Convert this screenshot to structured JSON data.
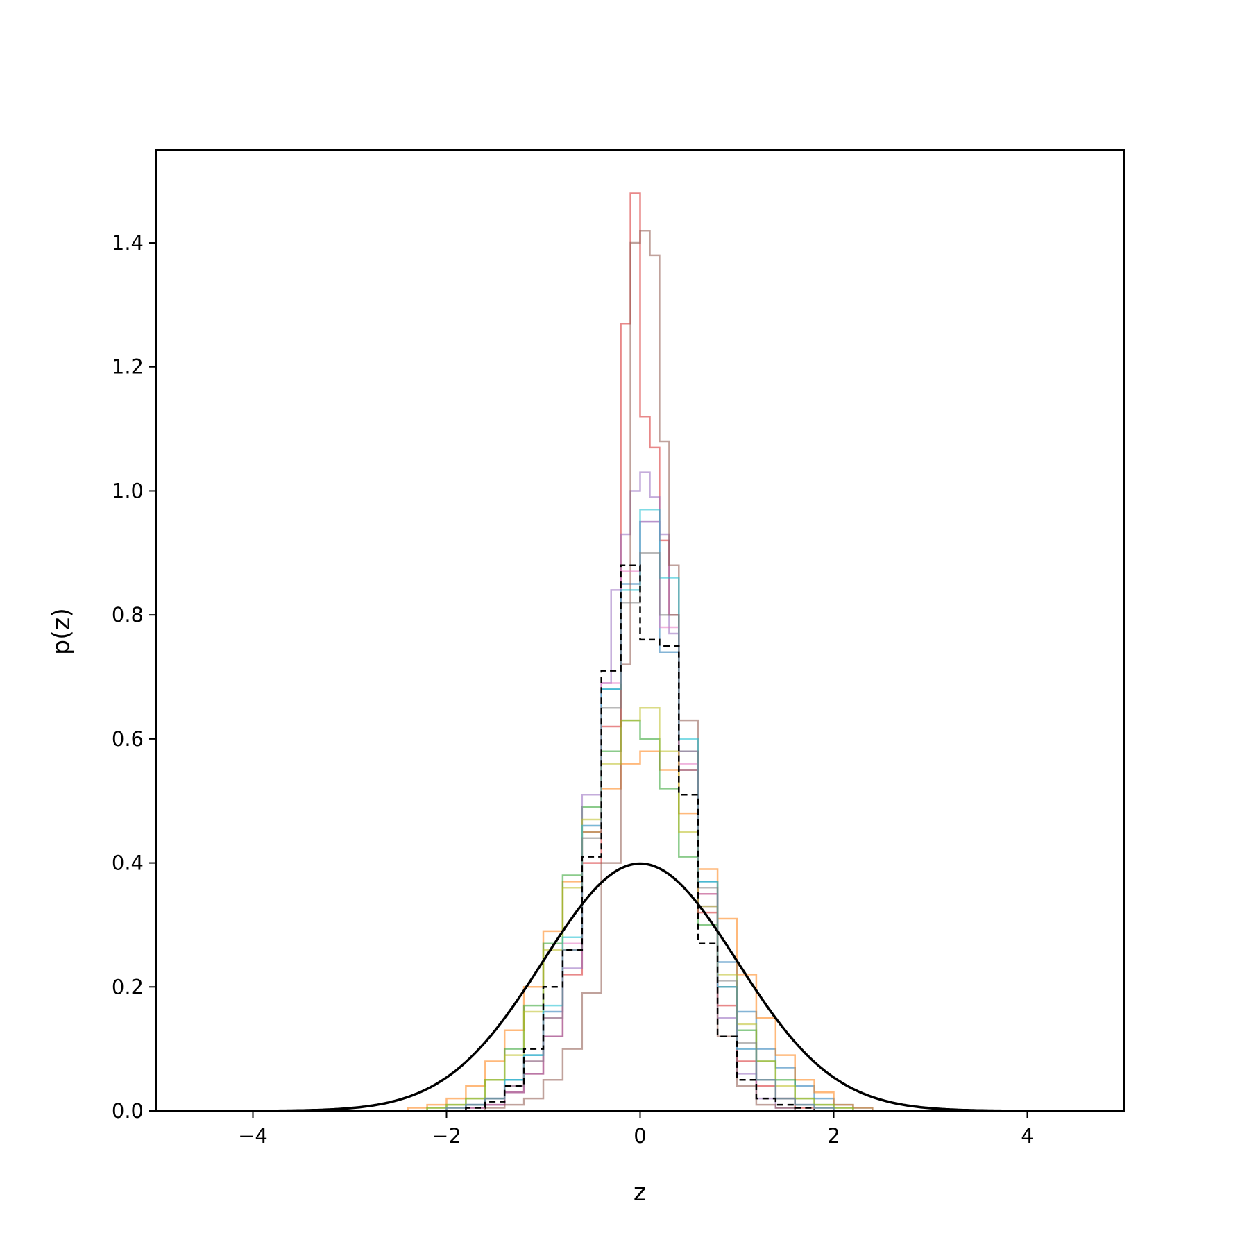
{
  "chart_data": {
    "type": "line",
    "xlabel": "z",
    "ylabel": "p(z)",
    "xlim": [
      -5,
      5
    ],
    "ylim": [
      0,
      1.55
    ],
    "x_ticks": [
      -4,
      -2,
      0,
      2,
      4
    ],
    "x_tick_labels": [
      "−4",
      "−2",
      "0",
      "2",
      "4"
    ],
    "y_ticks": [
      0.0,
      0.2,
      0.4,
      0.6,
      0.8,
      1.0,
      1.2,
      1.4
    ],
    "y_tick_labels": [
      "0.0",
      "0.2",
      "0.4",
      "0.6",
      "0.8",
      "1.0",
      "1.2",
      "1.4"
    ],
    "grid": false,
    "legend": "none",
    "histograms": [
      {
        "color": "#1f77b4",
        "edges": [
          -2.0,
          -1.8,
          -1.6,
          -1.4,
          -1.2,
          -1.0,
          -0.8,
          -0.6,
          -0.4,
          -0.2,
          0.0,
          0.2,
          0.4,
          0.6,
          0.8,
          1.0,
          1.2,
          1.4,
          1.6,
          1.8,
          2.0,
          2.2,
          2.4
        ],
        "heights": [
          0.0,
          0.01,
          0.02,
          0.05,
          0.09,
          0.16,
          0.26,
          0.45,
          0.68,
          0.85,
          0.95,
          0.74,
          0.55,
          0.37,
          0.24,
          0.16,
          0.1,
          0.07,
          0.04,
          0.02,
          0.01,
          0.005
        ]
      },
      {
        "color": "#ff7f0e",
        "edges": [
          -2.4,
          -2.2,
          -2.0,
          -1.8,
          -1.6,
          -1.4,
          -1.2,
          -1.0,
          -0.8,
          -0.6,
          -0.4,
          -0.2,
          0.0,
          0.2,
          0.4,
          0.6,
          0.8,
          1.0,
          1.2,
          1.4,
          1.6,
          1.8,
          2.0,
          2.2,
          2.4
        ],
        "heights": [
          0.005,
          0.01,
          0.02,
          0.04,
          0.08,
          0.13,
          0.2,
          0.29,
          0.37,
          0.45,
          0.52,
          0.56,
          0.58,
          0.55,
          0.48,
          0.39,
          0.31,
          0.22,
          0.15,
          0.09,
          0.05,
          0.03,
          0.01,
          0.005
        ]
      },
      {
        "color": "#2ca02c",
        "edges": [
          -2.2,
          -2.0,
          -1.8,
          -1.6,
          -1.4,
          -1.2,
          -1.0,
          -0.8,
          -0.6,
          -0.4,
          -0.2,
          0.0,
          0.2,
          0.4,
          0.6,
          0.8,
          1.0,
          1.2,
          1.4,
          1.6,
          1.8,
          2.0,
          2.2
        ],
        "heights": [
          0.005,
          0.01,
          0.02,
          0.05,
          0.1,
          0.17,
          0.27,
          0.38,
          0.49,
          0.58,
          0.63,
          0.6,
          0.52,
          0.41,
          0.3,
          0.2,
          0.13,
          0.08,
          0.05,
          0.02,
          0.01,
          0.005
        ]
      },
      {
        "color": "#d62728",
        "edges": [
          -1.8,
          -1.6,
          -1.4,
          -1.2,
          -1.0,
          -0.8,
          -0.6,
          -0.4,
          -0.2,
          -0.1,
          0.0,
          0.1,
          0.2,
          0.3,
          0.4,
          0.6,
          0.8,
          1.0,
          1.2,
          1.4,
          1.6,
          1.8
        ],
        "heights": [
          0.005,
          0.01,
          0.03,
          0.06,
          0.12,
          0.22,
          0.4,
          0.62,
          1.27,
          1.48,
          1.12,
          1.07,
          0.92,
          0.8,
          0.55,
          0.32,
          0.17,
          0.08,
          0.04,
          0.02,
          0.005
        ]
      },
      {
        "color": "#9467bd",
        "edges": [
          -1.8,
          -1.6,
          -1.4,
          -1.2,
          -1.0,
          -0.8,
          -0.6,
          -0.4,
          -0.3,
          -0.2,
          -0.1,
          0.0,
          0.1,
          0.2,
          0.3,
          0.4,
          0.6,
          0.8,
          1.0,
          1.2,
          1.4,
          1.6
        ],
        "heights": [
          0.005,
          0.01,
          0.03,
          0.06,
          0.12,
          0.23,
          0.51,
          0.69,
          0.84,
          0.93,
          1.0,
          1.03,
          0.99,
          0.93,
          0.77,
          0.58,
          0.33,
          0.15,
          0.06,
          0.02,
          0.005
        ]
      },
      {
        "color": "#8c564b",
        "edges": [
          -1.6,
          -1.4,
          -1.2,
          -1.0,
          -0.8,
          -0.6,
          -0.4,
          -0.2,
          -0.1,
          0.0,
          0.1,
          0.2,
          0.3,
          0.4,
          0.6,
          0.8,
          1.0,
          1.2,
          1.4,
          1.6
        ],
        "heights": [
          0.005,
          0.01,
          0.02,
          0.05,
          0.1,
          0.19,
          0.4,
          0.72,
          1.4,
          1.42,
          1.38,
          1.08,
          0.88,
          0.63,
          0.35,
          0.12,
          0.04,
          0.01,
          0.005
        ]
      },
      {
        "color": "#e377c2",
        "edges": [
          -2.0,
          -1.8,
          -1.6,
          -1.4,
          -1.2,
          -1.0,
          -0.8,
          -0.6,
          -0.4,
          -0.2,
          0.0,
          0.2,
          0.4,
          0.6,
          0.8,
          1.0,
          1.2,
          1.4,
          1.6,
          1.8,
          2.0
        ],
        "heights": [
          0.005,
          0.01,
          0.02,
          0.04,
          0.08,
          0.15,
          0.27,
          0.46,
          0.69,
          0.87,
          0.95,
          0.78,
          0.56,
          0.35,
          0.2,
          0.1,
          0.05,
          0.02,
          0.01,
          0.005
        ]
      },
      {
        "color": "#bcbd22",
        "edges": [
          -2.2,
          -2.0,
          -1.8,
          -1.6,
          -1.4,
          -1.2,
          -1.0,
          -0.8,
          -0.6,
          -0.4,
          -0.2,
          0.0,
          0.2,
          0.4,
          0.6,
          0.8,
          1.0,
          1.2,
          1.4,
          1.6,
          1.8,
          2.0,
          2.2
        ],
        "heights": [
          0.005,
          0.01,
          0.02,
          0.05,
          0.09,
          0.16,
          0.26,
          0.36,
          0.47,
          0.56,
          0.63,
          0.65,
          0.58,
          0.45,
          0.33,
          0.22,
          0.14,
          0.08,
          0.04,
          0.02,
          0.01,
          0.005
        ]
      },
      {
        "color": "#17becf",
        "edges": [
          -2.0,
          -1.8,
          -1.6,
          -1.4,
          -1.2,
          -1.0,
          -0.8,
          -0.6,
          -0.4,
          -0.2,
          0.0,
          0.2,
          0.4,
          0.6,
          0.8,
          1.0,
          1.2,
          1.4,
          1.6,
          1.8,
          2.0
        ],
        "heights": [
          0.005,
          0.01,
          0.02,
          0.05,
          0.09,
          0.17,
          0.28,
          0.46,
          0.68,
          0.84,
          0.97,
          0.86,
          0.6,
          0.37,
          0.2,
          0.1,
          0.05,
          0.02,
          0.01,
          0.005
        ]
      },
      {
        "color": "#7f7f7f",
        "edges": [
          -2.0,
          -1.8,
          -1.6,
          -1.4,
          -1.2,
          -1.0,
          -0.8,
          -0.6,
          -0.4,
          -0.2,
          0.0,
          0.2,
          0.4,
          0.6,
          0.8,
          1.0,
          1.2,
          1.4,
          1.6,
          1.8,
          2.0
        ],
        "heights": [
          0.005,
          0.01,
          0.02,
          0.04,
          0.08,
          0.15,
          0.26,
          0.44,
          0.65,
          0.82,
          0.9,
          0.8,
          0.58,
          0.36,
          0.21,
          0.11,
          0.05,
          0.02,
          0.01,
          0.005
        ]
      }
    ],
    "dashed_histogram": {
      "color": "#000000",
      "edges": [
        -2.0,
        -1.8,
        -1.6,
        -1.4,
        -1.2,
        -1.0,
        -0.8,
        -0.6,
        -0.4,
        -0.2,
        0.0,
        0.2,
        0.4,
        0.6,
        0.8,
        1.0,
        1.2,
        1.4,
        1.6,
        1.8,
        2.0
      ],
      "heights": [
        0.0,
        0.005,
        0.015,
        0.04,
        0.1,
        0.2,
        0.26,
        0.41,
        0.71,
        0.88,
        0.76,
        0.75,
        0.51,
        0.27,
        0.12,
        0.05,
        0.02,
        0.01,
        0.005,
        0.0
      ]
    },
    "curve": {
      "type": "normal_pdf",
      "mean": 0,
      "std": 1,
      "color": "#000000"
    }
  }
}
